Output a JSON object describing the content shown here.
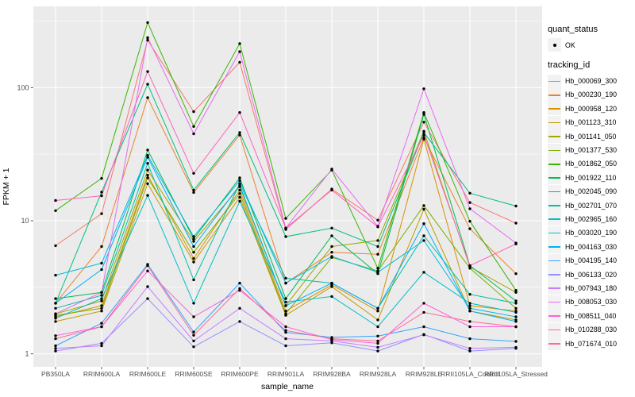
{
  "figure": {
    "y_axis_title": "FPKM + 1",
    "x_axis_title": "sample_name",
    "y_tick_labels": [
      "1",
      "10",
      "100"
    ],
    "legend": {
      "quant_status_title": "quant_status",
      "quant_status_ok_label": "OK",
      "tracking_id_title": "tracking_id"
    },
    "colors": {
      "panel_bg": "#EBEBEB",
      "grid": "#FFFFFF",
      "axis_text": "#4D4D4D",
      "tick_mark": "#333333",
      "point": "#000000",
      "legend_key_bg": "#F2F2F2"
    }
  },
  "chart_data": {
    "type": "line",
    "title": "",
    "xlabel": "sample_name",
    "ylabel": "FPKM + 1",
    "y_scale": "log10",
    "ylim": [
      0.8,
      410
    ],
    "y_major_ticks": [
      1,
      10,
      100
    ],
    "y_minor_ticks": [
      3.1623,
      31.623,
      316.23
    ],
    "grid": "on",
    "legend_position": "right",
    "point_marker": "black-dot-quant-status-OK",
    "categories": [
      "PB350LA",
      "RRIM600LA",
      "RRIM600LE",
      "RRIM600SE",
      "RRIM600PE",
      "RRIM901LA",
      "RRIM928BA",
      "RRIM928LA",
      "RRIM928LE",
      "RRII105LA_Control",
      "RRII105LA_Stressed"
    ],
    "series": [
      {
        "name": "Hb_000069_300",
        "color": "#F8766D",
        "values": [
          6.5,
          11.3,
          227,
          66,
          155,
          8.6,
          17.3,
          10.1,
          55,
          13.7,
          9.6
        ]
      },
      {
        "name": "Hb_000230_190",
        "color": "#EA8331",
        "values": [
          2.4,
          6.4,
          84,
          16.3,
          44,
          3.4,
          5.8,
          5.6,
          42,
          8.7,
          4.0
        ]
      },
      {
        "name": "Hb_000958_120",
        "color": "#D89000",
        "values": [
          1.9,
          2.3,
          22,
          5.2,
          17,
          2.1,
          3.3,
          2.1,
          41,
          2.3,
          2.1
        ]
      },
      {
        "name": "Hb_001123_310",
        "color": "#C09B00",
        "values": [
          1.75,
          2.1,
          19,
          4.9,
          15,
          1.95,
          3.2,
          1.8,
          12.2,
          2.1,
          1.8
        ]
      },
      {
        "name": "Hb_001141_050",
        "color": "#A3A500",
        "values": [
          2.0,
          2.5,
          24,
          7.0,
          18,
          2.3,
          6.4,
          7.1,
          47,
          4.5,
          2.9
        ]
      },
      {
        "name": "Hb_001377_530",
        "color": "#7CAE00",
        "values": [
          1.95,
          2.2,
          21,
          5.8,
          16,
          2.0,
          5.3,
          4.2,
          13,
          4.4,
          2.2
        ]
      },
      {
        "name": "Hb_001862_050",
        "color": "#39B600",
        "values": [
          11.9,
          20.8,
          308,
          51,
          214,
          10.4,
          24.0,
          4.4,
          65,
          9.9,
          3.0
        ]
      },
      {
        "name": "Hb_001922_110",
        "color": "#00BB4E",
        "values": [
          2.6,
          2.9,
          34,
          7.3,
          21,
          2.6,
          7.7,
          4.0,
          63,
          4.6,
          2.5
        ]
      },
      {
        "name": "Hb_002045_090",
        "color": "#00BF7D",
        "values": [
          2.4,
          16.4,
          106,
          17,
          46,
          7.6,
          8.8,
          6.4,
          46,
          16.1,
          12.9
        ]
      },
      {
        "name": "Hb_002701_070",
        "color": "#00C1A3",
        "values": [
          2.2,
          2.75,
          27,
          3.6,
          19,
          3.7,
          3.4,
          2.2,
          7.7,
          2.8,
          2.4
        ]
      },
      {
        "name": "Hb_002965_160",
        "color": "#00BFC4",
        "values": [
          1.85,
          2.6,
          15.5,
          2.4,
          14,
          2.45,
          2.7,
          1.6,
          4.1,
          2.4,
          2.05
        ]
      },
      {
        "name": "Hb_003020_190",
        "color": "#00BAE0",
        "values": [
          3.9,
          4.8,
          31,
          7.6,
          20,
          3.4,
          5.4,
          4.1,
          7.1,
          2.2,
          1.9
        ]
      },
      {
        "name": "Hb_004163_030",
        "color": "#00B0F6",
        "values": [
          2.4,
          4.3,
          30,
          6.4,
          18.5,
          2.3,
          3.4,
          2.2,
          9.5,
          2.1,
          1.75
        ]
      },
      {
        "name": "Hb_004195_140",
        "color": "#35A2FF",
        "values": [
          1.15,
          1.7,
          4.7,
          1.46,
          3.4,
          1.45,
          1.33,
          1.36,
          1.6,
          1.3,
          1.24
        ]
      },
      {
        "name": "Hb_006133_020",
        "color": "#9590FF",
        "values": [
          1.05,
          1.2,
          2.6,
          1.13,
          1.75,
          1.15,
          1.21,
          1.05,
          1.4,
          1.05,
          1.1
        ]
      },
      {
        "name": "Hb_007943_180",
        "color": "#C77CFF",
        "values": [
          1.1,
          1.15,
          3.2,
          1.25,
          2.2,
          1.3,
          1.25,
          1.12,
          1.39,
          1.1,
          1.12
        ]
      },
      {
        "name": "Hb_008053_030",
        "color": "#E76BF3",
        "values": [
          2.0,
          2.9,
          237,
          45,
          186,
          8.8,
          24.4,
          9.1,
          98,
          12.3,
          6.8
        ]
      },
      {
        "name": "Hb_008511_040",
        "color": "#FA62DB",
        "values": [
          1.37,
          1.6,
          4.2,
          1.9,
          3.0,
          1.6,
          1.28,
          1.2,
          2.4,
          1.6,
          1.6
        ]
      },
      {
        "name": "Hb_010288_030",
        "color": "#FF62BC",
        "values": [
          14.2,
          15.4,
          132,
          22.7,
          65,
          8.8,
          17.0,
          9.0,
          44,
          4.6,
          6.7
        ]
      },
      {
        "name": "Hb_071674_010",
        "color": "#FF6A98",
        "values": [
          1.3,
          1.6,
          4.6,
          1.38,
          3.1,
          1.5,
          1.3,
          1.25,
          2.05,
          1.75,
          1.6
        ]
      }
    ]
  }
}
